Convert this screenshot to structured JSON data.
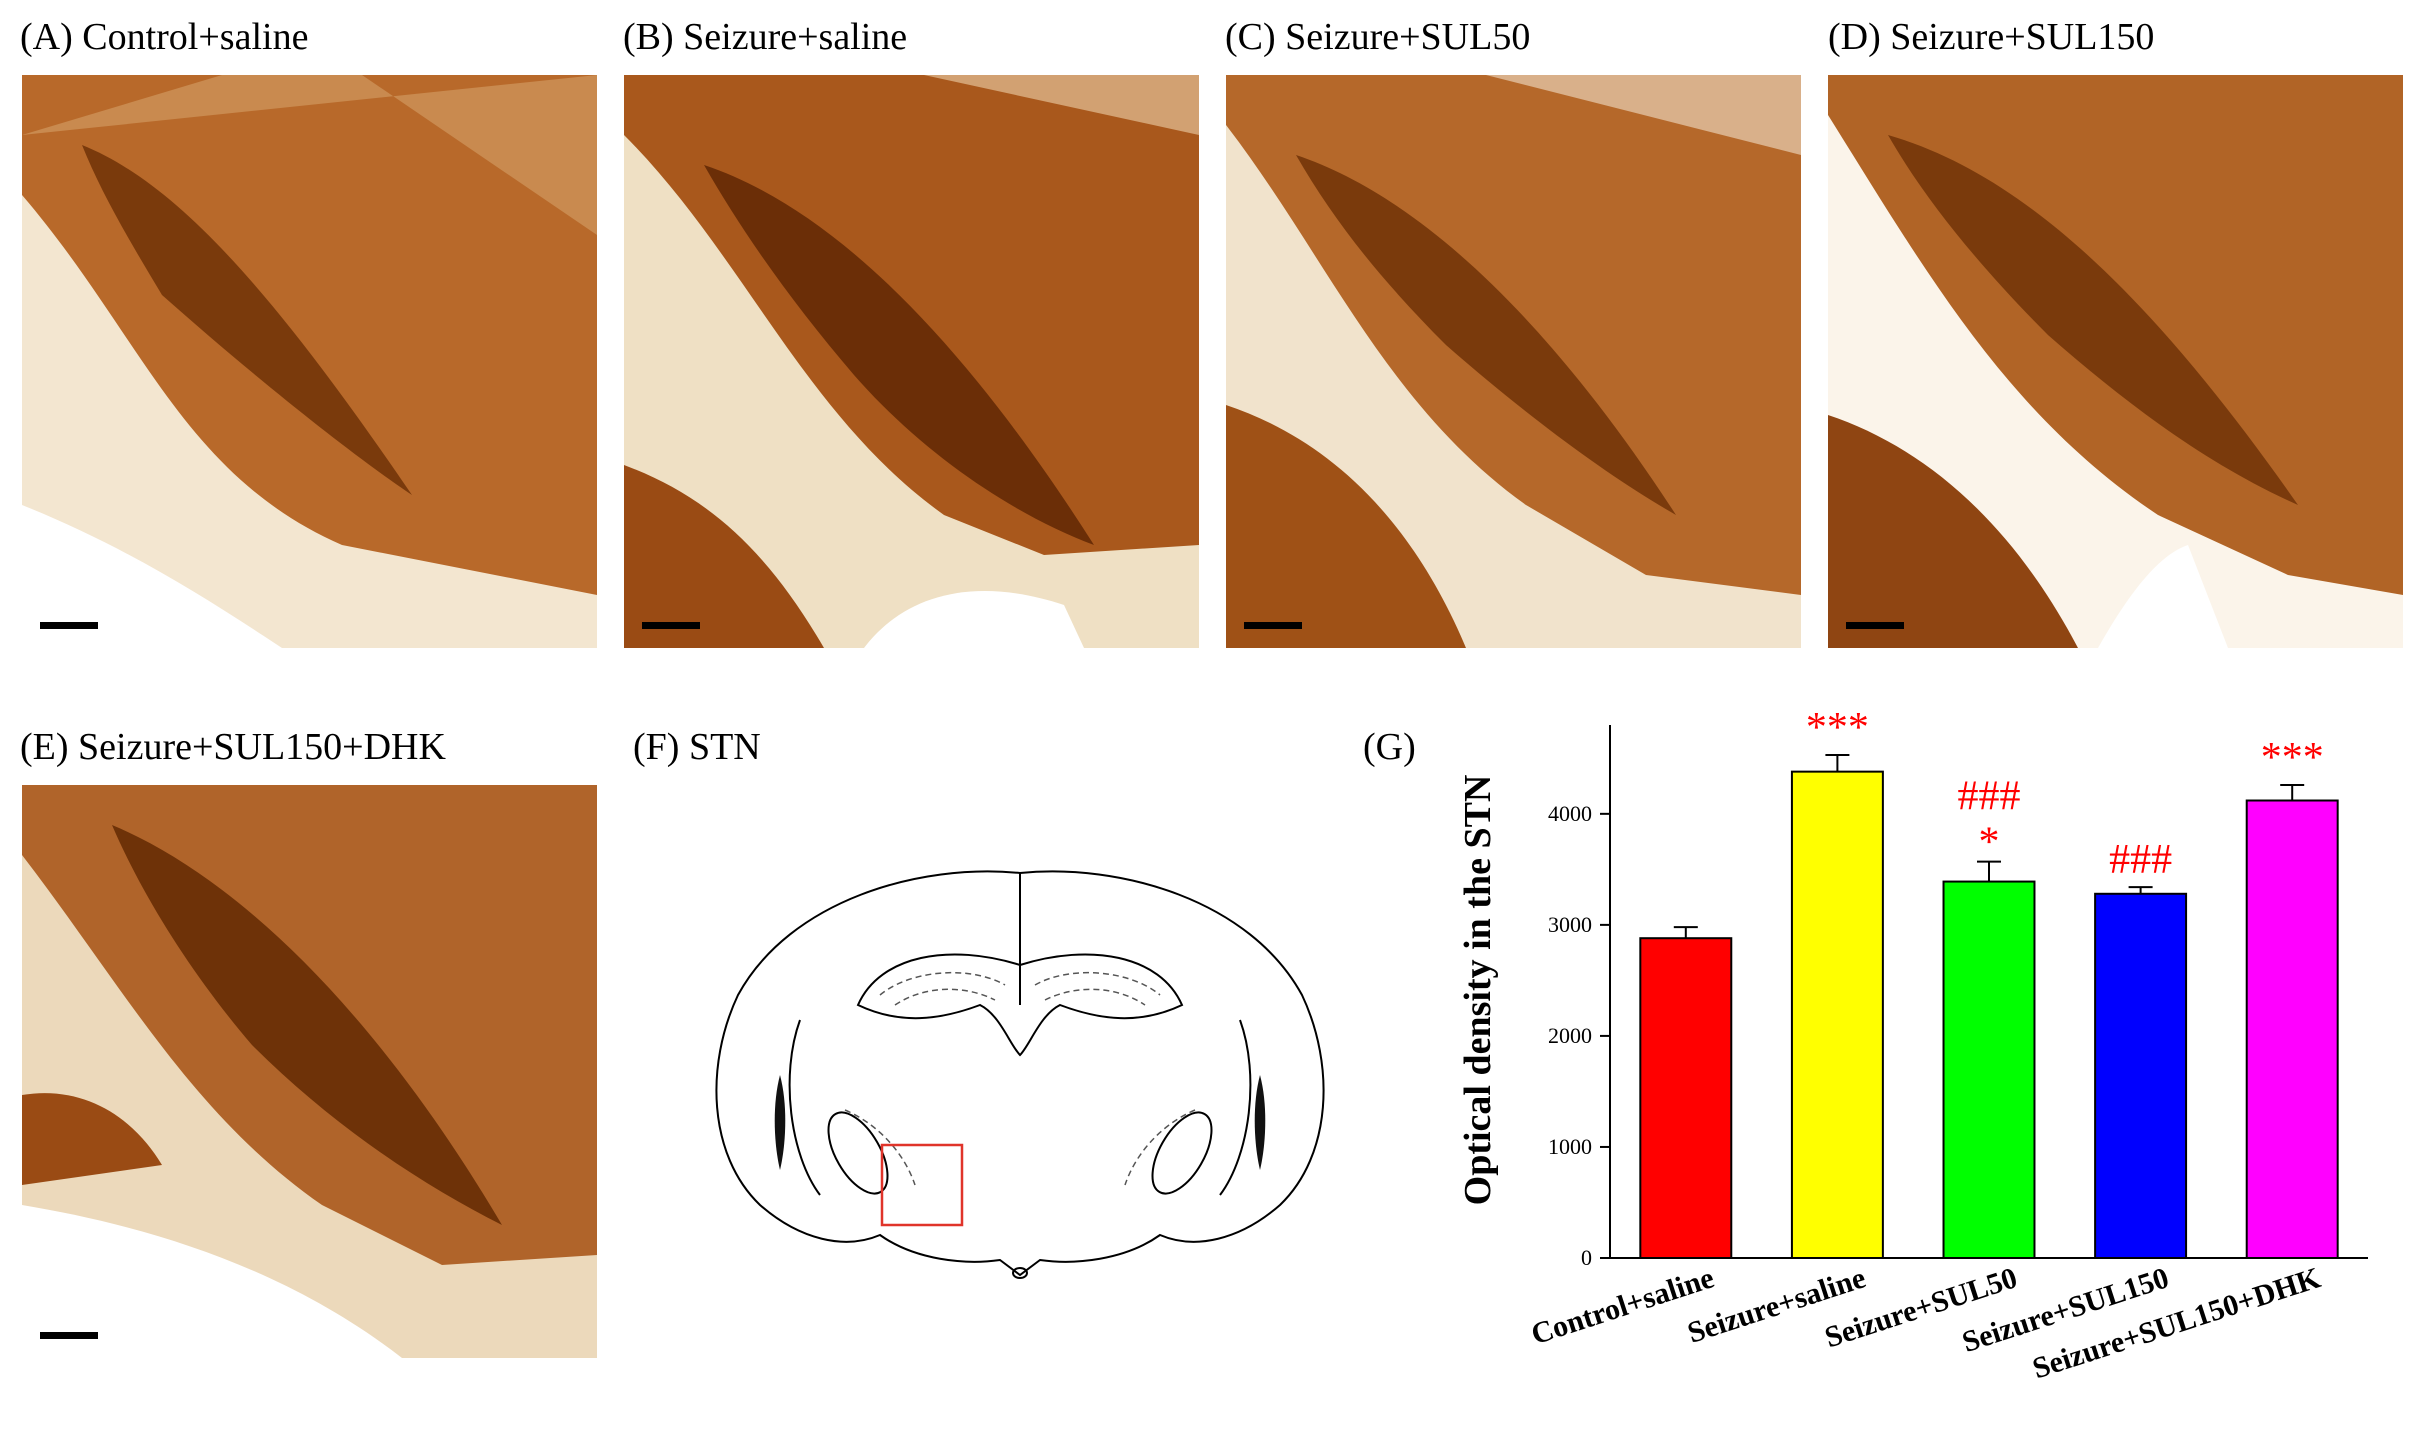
{
  "panels": [
    {
      "label": "(A) Control+saline"
    },
    {
      "label": "(B) Seizure+saline"
    },
    {
      "label": "(C) Seizure+SUL50"
    },
    {
      "label": "(D) Seizure+SUL150"
    },
    {
      "label": "(E) Seizure+SUL150+DHK"
    },
    {
      "label": "(F) STN"
    },
    {
      "label": "(G)"
    }
  ],
  "colors": {
    "stain_dark": "#7a3a0c",
    "stain_mid": "#b8692a",
    "stain_light": "#f3e6d0",
    "roi_box": "#e0342a"
  },
  "chart_data": {
    "type": "bar",
    "categories": [
      "Control+saline",
      "Seizure+saline",
      "Seizure+SUL50",
      "Seizure+SUL150",
      "Seizure+SUL150+DHK"
    ],
    "values": [
      2880,
      4380,
      3390,
      3280,
      4120
    ],
    "errors": [
      100,
      150,
      180,
      60,
      140
    ],
    "bar_colors": [
      "#ff0000",
      "#ffff00",
      "#00ff00",
      "#0000ff",
      "#ff00ff"
    ],
    "annotations": [
      [
        "",
        ""
      ],
      [
        "***",
        ""
      ],
      [
        "###",
        "*"
      ],
      [
        "###",
        ""
      ],
      [
        "***",
        ""
      ]
    ],
    "annotation_color": "#ff0000",
    "ylabel": "Optical density in the STN",
    "ylim": [
      0,
      4800
    ],
    "yticks": [
      0,
      1000,
      2000,
      3000,
      4000
    ],
    "grid": false
  }
}
